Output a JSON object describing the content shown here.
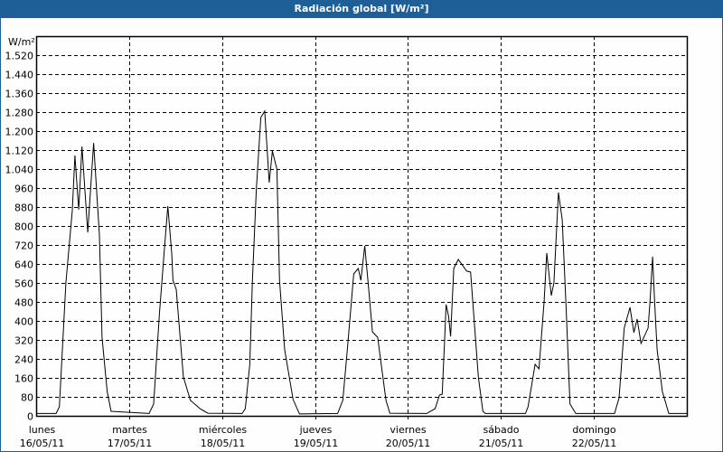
{
  "title": "Radiación global [W/m²]",
  "chart_data": {
    "type": "line",
    "title": "Radiación global [W/m²]",
    "ylabel": "W/m²",
    "ylim": [
      0,
      1600
    ],
    "yticks": [
      0,
      80,
      160,
      240,
      320,
      400,
      480,
      560,
      640,
      720,
      800,
      880,
      960,
      1040,
      1120,
      1200,
      1280,
      1360,
      1440,
      1520
    ],
    "ytick_labels": [
      "0",
      "80",
      "160",
      "240",
      "320",
      "400",
      "480",
      "560",
      "640",
      "720",
      "800",
      "880",
      "960",
      "1.040",
      "1.120",
      "1.200",
      "1.280",
      "1.360",
      "1.440",
      "1.520"
    ],
    "xlim": [
      "16/05/11 00:00",
      "23/05/11 00:00"
    ],
    "xticks": [
      {
        "day": "lunes",
        "date": "16/05/11"
      },
      {
        "day": "martes",
        "date": "17/05/11"
      },
      {
        "day": "miércoles",
        "date": "18/05/11"
      },
      {
        "day": "jueves",
        "date": "19/05/11"
      },
      {
        "day": "viernes",
        "date": "20/05/11"
      },
      {
        "day": "sábado",
        "date": "21/05/11"
      },
      {
        "day": "domingo",
        "date": "22/05/11"
      }
    ],
    "grid": true,
    "line_color": "#000000",
    "points": [
      [
        "16/05 00:00",
        10
      ],
      [
        "16/05 05:10",
        10
      ],
      [
        "16/05 06:00",
        38
      ],
      [
        "16/05 07:40",
        560
      ],
      [
        "16/05 09:20",
        865
      ],
      [
        "16/05 10:00",
        1097
      ],
      [
        "16/05 11:00",
        869
      ],
      [
        "16/05 11:50",
        1135
      ],
      [
        "16/05 13:20",
        773
      ],
      [
        "16/05 14:50",
        1150
      ],
      [
        "16/05 16:20",
        762
      ],
      [
        "16/05 17:00",
        331
      ],
      [
        "16/05 18:20",
        103
      ],
      [
        "16/05 19:20",
        19
      ],
      [
        "17/05 05:10",
        10
      ],
      [
        "17/05 06:20",
        50
      ],
      [
        "17/05 07:50",
        430
      ],
      [
        "17/05 09:10",
        712
      ],
      [
        "17/05 10:00",
        884
      ],
      [
        "17/05 11:00",
        686
      ],
      [
        "17/05 11:20",
        571
      ],
      [
        "17/05 12:10",
        533
      ],
      [
        "17/05 14:00",
        164
      ],
      [
        "17/05 15:50",
        65
      ],
      [
        "17/05 18:20",
        30
      ],
      [
        "17/05 20:20",
        11
      ],
      [
        "18/05 05:10",
        10
      ],
      [
        "18/05 06:00",
        30
      ],
      [
        "18/05 07:10",
        217
      ],
      [
        "18/05 07:50",
        571
      ],
      [
        "18/05 08:50",
        952
      ],
      [
        "18/05 10:00",
        1257
      ],
      [
        "18/05 11:00",
        1284
      ],
      [
        "18/05 12:10",
        983
      ],
      [
        "18/05 13:00",
        1116
      ],
      [
        "18/05 14:10",
        1040
      ],
      [
        "18/05 14:50",
        571
      ],
      [
        "18/05 16:10",
        278
      ],
      [
        "18/05 18:20",
        69
      ],
      [
        "18/05 20:00",
        8
      ],
      [
        "19/05 05:50",
        10
      ],
      [
        "19/05 07:10",
        65
      ],
      [
        "19/05 08:20",
        278
      ],
      [
        "19/05 10:00",
        598
      ],
      [
        "19/05 11:10",
        621
      ],
      [
        "19/05 11:50",
        571
      ],
      [
        "19/05 12:50",
        716
      ],
      [
        "19/05 13:40",
        571
      ],
      [
        "19/05 14:50",
        354
      ],
      [
        "19/05 16:10",
        331
      ],
      [
        "19/05 17:00",
        229
      ],
      [
        "19/05 18:20",
        65
      ],
      [
        "19/05 19:20",
        11
      ],
      [
        "20/05 04:50",
        10
      ],
      [
        "20/05 07:00",
        30
      ],
      [
        "20/05 08:10",
        88
      ],
      [
        "20/05 08:50",
        91
      ],
      [
        "20/05 09:30",
        331
      ],
      [
        "20/05 09:50",
        469
      ],
      [
        "20/05 10:30",
        419
      ],
      [
        "20/05 11:00",
        335
      ],
      [
        "20/05 11:50",
        621
      ],
      [
        "20/05 13:00",
        659
      ],
      [
        "20/05 15:10",
        610
      ],
      [
        "20/05 16:10",
        606
      ],
      [
        "20/05 18:10",
        164
      ],
      [
        "20/05 19:20",
        19
      ],
      [
        "20/05 20:00",
        10
      ],
      [
        "21/05 06:20",
        10
      ],
      [
        "21/05 07:00",
        38
      ],
      [
        "21/05 08:50",
        217
      ],
      [
        "21/05 09:50",
        198
      ],
      [
        "21/05 11:10",
        484
      ],
      [
        "21/05 11:50",
        686
      ],
      [
        "21/05 13:00",
        507
      ],
      [
        "21/05 13:40",
        560
      ],
      [
        "21/05 14:50",
        941
      ],
      [
        "21/05 15:50",
        827
      ],
      [
        "21/05 16:50",
        457
      ],
      [
        "21/05 17:50",
        50
      ],
      [
        "21/05 19:20",
        10
      ],
      [
        "22/05 05:20",
        10
      ],
      [
        "22/05 06:30",
        76
      ],
      [
        "22/05 07:50",
        370
      ],
      [
        "22/05 09:20",
        457
      ],
      [
        "22/05 10:20",
        351
      ],
      [
        "22/05 11:10",
        408
      ],
      [
        "22/05 12:10",
        305
      ],
      [
        "22/05 14:00",
        370
      ],
      [
        "22/05 14:30",
        484
      ],
      [
        "22/05 15:10",
        671
      ],
      [
        "22/05 15:40",
        484
      ],
      [
        "22/05 16:20",
        278
      ],
      [
        "22/05 17:40",
        103
      ],
      [
        "22/05 19:20",
        10
      ],
      [
        "23/05 00:00",
        10
      ]
    ]
  }
}
